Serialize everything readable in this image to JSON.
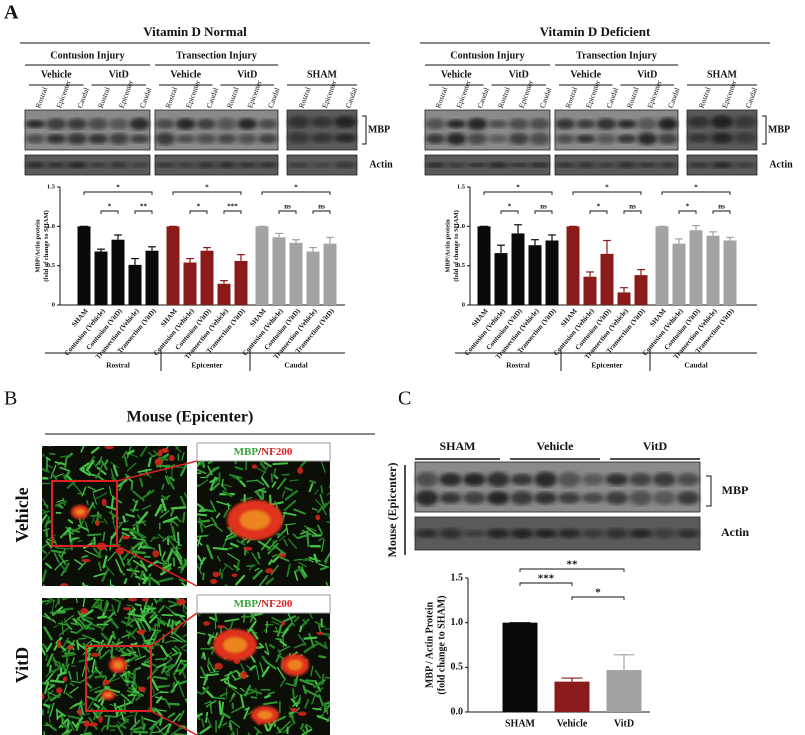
{
  "figure": {
    "panel_labels": [
      "A",
      "B",
      "C"
    ],
    "blots_a": {
      "injuries": [
        "Contusion Injury",
        "Transection Injury"
      ],
      "treatments": [
        "Vehicle",
        "VitD"
      ],
      "sham": "SHAM",
      "lanes": [
        "Rostral",
        "Epicenter",
        "Caudal"
      ],
      "bands": [
        "MBP",
        "Actin"
      ]
    },
    "panel_b": {
      "title": "Mouse (Epicenter)",
      "rows": [
        "Vehicle",
        "VitD"
      ],
      "stain": {
        "green": "MBP",
        "separator": "/",
        "red": "NF200"
      }
    },
    "panel_c": {
      "region": "Mouse (Epicenter)",
      "groups": [
        "SHAM",
        "Vehicle",
        "VitD"
      ],
      "bands": [
        "MBP",
        "Actin"
      ]
    }
  },
  "chart_data": [
    {
      "type": "bar",
      "title": "Vitamin D Normal",
      "y_label": [
        "MBP/Actin protein",
        "(fold of change to SHAM)"
      ],
      "categories": [
        "SHAM",
        "Contusion (Vehicle)",
        "Contusion (VitD)",
        "Transection (Vehicle)",
        "Transection (VitD)",
        "SHAM",
        "Contusion (Vehicle)",
        "Contusion (VitD)",
        "Transection (Vehicle)",
        "Transection (VitD)",
        "SHAM",
        "Contusion (Vehicle)",
        "Contusion (VitD)",
        "Transection (Vehicle)",
        "Transection (VitD)"
      ],
      "groups": [
        "Rostral",
        "Epicenter",
        "Caudal"
      ],
      "group_colors": [
        "#0a0a0a",
        "#8b1a1a",
        "#a3a3a3"
      ],
      "values": [
        1.0,
        0.68,
        0.83,
        0.51,
        0.69,
        1.0,
        0.54,
        0.69,
        0.27,
        0.56,
        1.0,
        0.86,
        0.79,
        0.68,
        0.78
      ],
      "errors": [
        0,
        0.03,
        0.06,
        0.08,
        0.05,
        0,
        0.05,
        0.04,
        0.04,
        0.08,
        0,
        0.05,
        0.04,
        0.05,
        0.08
      ],
      "ylim": [
        0,
        1.5
      ],
      "yticks": [
        0,
        0.5,
        {
          "value": 1,
          "label": "1.0"
        },
        1.5
      ],
      "annotations": [
        "*",
        "*",
        "**",
        "*",
        "*",
        "***",
        "*",
        "ns",
        "ns"
      ]
    },
    {
      "type": "bar",
      "title": "Vitamin D Deficient",
      "y_label": [
        "MBP/Actin protein",
        "(fold of change to SHAM)"
      ],
      "categories": [
        "SHAM",
        "Contusion (Vehicle)",
        "Contusion (VitD)",
        "Transection (Vehicle)",
        "Transection (VitD)",
        "SHAM",
        "Contusion (Vehicle)",
        "Contusion (VitD)",
        "Transection (Vehicle)",
        "Transection (VitD)",
        "SHAM",
        "Contusion (Vehicle)",
        "Contusion (VitD)",
        "Transection (Vehicle)",
        "Transection (VitD)"
      ],
      "groups": [
        "Rostral",
        "Epicenter",
        "Caudal"
      ],
      "group_colors": [
        "#0a0a0a",
        "#8b1a1a",
        "#a3a3a3"
      ],
      "values": [
        1.0,
        0.66,
        0.91,
        0.76,
        0.82,
        1.0,
        0.36,
        0.65,
        0.16,
        0.38,
        1.0,
        0.78,
        0.95,
        0.88,
        0.82
      ],
      "errors": [
        0,
        0.1,
        0.11,
        0.07,
        0.07,
        0,
        0.06,
        0.17,
        0.06,
        0.07,
        0,
        0.06,
        0.06,
        0.05,
        0.04
      ],
      "ylim": [
        0,
        1.5
      ],
      "yticks": [
        0,
        0.5,
        {
          "value": 1,
          "label": "1.0"
        },
        1.5
      ],
      "annotations": [
        "*",
        "*",
        "ns",
        "*",
        "*",
        "ns",
        "*",
        "*",
        "ns"
      ]
    },
    {
      "type": "bar",
      "y_label": [
        "MBP / Actin Protein",
        "(fold change to SHAM)"
      ],
      "categories": [
        "SHAM",
        "Vehicle",
        "VitD"
      ],
      "colors": [
        "#0a0a0a",
        "#8b1a1a",
        "#a3a3a3"
      ],
      "values": [
        1.0,
        0.34,
        0.47
      ],
      "errors": [
        0,
        0.04,
        0.17
      ],
      "ylim": [
        0,
        1.5
      ],
      "yticks": [
        {
          "value": 0,
          "label": "0.0"
        },
        0.5,
        {
          "value": 1,
          "label": "1.0"
        },
        1.5
      ],
      "annotations": [
        "**",
        "***",
        "*"
      ]
    }
  ]
}
